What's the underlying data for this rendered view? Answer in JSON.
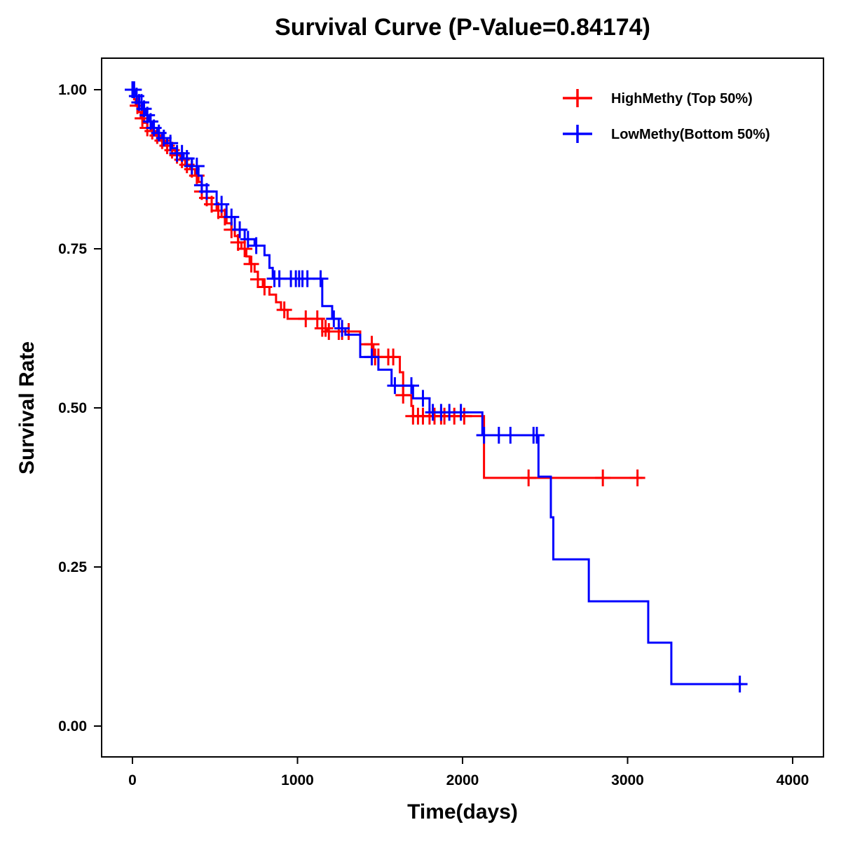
{
  "chart_data": {
    "type": "line",
    "subtype": "kaplan-meier-step",
    "title": "Survival Curve (P-Value=0.84174)",
    "p_value": 0.84174,
    "xlabel": "Time(days)",
    "ylabel": "Survival Rate",
    "xlim": [
      -200,
      4200
    ],
    "ylim": [
      -0.045,
      1.045
    ],
    "x_ticks": [
      0,
      1000,
      2000,
      3000,
      4000
    ],
    "x_tick_labels": [
      "0",
      "1000",
      "2000",
      "3000",
      "4000"
    ],
    "y_ticks": [
      0,
      0.25,
      0.5,
      0.75,
      1.0
    ],
    "y_tick_labels": [
      "0.00",
      "0.25",
      "0.50",
      "0.75",
      "1.00"
    ],
    "grid": false,
    "legend_position": "top-right",
    "series": [
      {
        "name": "HighMethy (Top 50%)",
        "color": "#ff0000",
        "steps": [
          [
            0,
            1.0
          ],
          [
            10,
            0.985
          ],
          [
            20,
            0.975
          ],
          [
            35,
            0.965
          ],
          [
            50,
            0.955
          ],
          [
            70,
            0.948
          ],
          [
            90,
            0.94
          ],
          [
            110,
            0.935
          ],
          [
            140,
            0.928
          ],
          [
            170,
            0.92
          ],
          [
            200,
            0.912
          ],
          [
            230,
            0.905
          ],
          [
            260,
            0.897
          ],
          [
            290,
            0.89
          ],
          [
            320,
            0.882
          ],
          [
            350,
            0.875
          ],
          [
            380,
            0.865
          ],
          [
            400,
            0.855
          ],
          [
            420,
            0.84
          ],
          [
            450,
            0.83
          ],
          [
            480,
            0.82
          ],
          [
            510,
            0.81
          ],
          [
            540,
            0.8
          ],
          [
            570,
            0.79
          ],
          [
            600,
            0.78
          ],
          [
            620,
            0.77
          ],
          [
            640,
            0.76
          ],
          [
            660,
            0.75
          ],
          [
            690,
            0.738
          ],
          [
            710,
            0.726
          ],
          [
            740,
            0.714
          ],
          [
            760,
            0.702
          ],
          [
            790,
            0.69
          ],
          [
            830,
            0.678
          ],
          [
            870,
            0.666
          ],
          [
            900,
            0.654
          ],
          [
            940,
            0.64
          ],
          [
            1150,
            0.625
          ],
          [
            1180,
            0.62
          ],
          [
            1380,
            0.6
          ],
          [
            1460,
            0.58
          ],
          [
            1620,
            0.556
          ],
          [
            1640,
            0.52
          ],
          [
            1690,
            0.503
          ],
          [
            1700,
            0.487
          ],
          [
            2130,
            0.39
          ]
        ],
        "end_time": 3090,
        "censor_times": [
          30,
          60,
          90,
          120,
          150,
          180,
          210,
          240,
          270,
          300,
          330,
          360,
          390,
          420,
          450,
          480,
          520,
          560,
          600,
          640,
          680,
          720,
          760,
          800,
          920,
          1050,
          1120,
          1150,
          1170,
          1190,
          1250,
          1270,
          1310,
          1450,
          1470,
          1490,
          1550,
          1580,
          1640,
          1700,
          1730,
          1760,
          1800,
          1830,
          1870,
          1890,
          1950,
          2010,
          2400,
          2850,
          3060
        ]
      },
      {
        "name": "LowMethy(Bottom 50%)",
        "color": "#0000ff",
        "steps": [
          [
            0,
            1.0
          ],
          [
            20,
            0.99
          ],
          [
            40,
            0.98
          ],
          [
            60,
            0.97
          ],
          [
            80,
            0.96
          ],
          [
            100,
            0.95
          ],
          [
            120,
            0.94
          ],
          [
            150,
            0.932
          ],
          [
            180,
            0.924
          ],
          [
            210,
            0.916
          ],
          [
            240,
            0.908
          ],
          [
            270,
            0.9
          ],
          [
            310,
            0.892
          ],
          [
            360,
            0.88
          ],
          [
            400,
            0.865
          ],
          [
            420,
            0.85
          ],
          [
            450,
            0.84
          ],
          [
            510,
            0.82
          ],
          [
            570,
            0.8
          ],
          [
            620,
            0.78
          ],
          [
            680,
            0.765
          ],
          [
            740,
            0.755
          ],
          [
            800,
            0.74
          ],
          [
            830,
            0.72
          ],
          [
            850,
            0.703
          ],
          [
            1150,
            0.66
          ],
          [
            1210,
            0.64
          ],
          [
            1250,
            0.625
          ],
          [
            1290,
            0.615
          ],
          [
            1380,
            0.58
          ],
          [
            1490,
            0.56
          ],
          [
            1570,
            0.535
          ],
          [
            1700,
            0.515
          ],
          [
            1800,
            0.493
          ],
          [
            2120,
            0.457
          ],
          [
            2460,
            0.392
          ],
          [
            2535,
            0.328
          ],
          [
            2550,
            0.262
          ],
          [
            2765,
            0.196
          ],
          [
            3125,
            0.131
          ],
          [
            3265,
            0.066
          ]
        ],
        "end_time": 3700,
        "censor_times": [
          0,
          10,
          25,
          40,
          55,
          70,
          90,
          110,
          130,
          160,
          190,
          230,
          270,
          300,
          330,
          360,
          390,
          420,
          450,
          540,
          600,
          650,
          700,
          750,
          860,
          890,
          960,
          990,
          1010,
          1030,
          1060,
          1140,
          1220,
          1270,
          1450,
          1590,
          1690,
          1760,
          1820,
          1870,
          1920,
          1990,
          2130,
          2220,
          2290,
          2430,
          2450,
          3680
        ]
      }
    ]
  }
}
